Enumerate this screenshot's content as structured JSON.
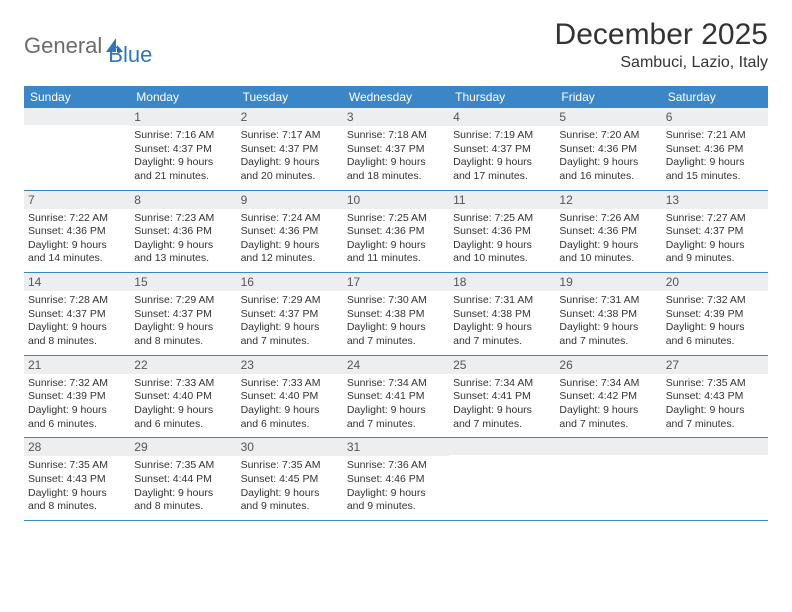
{
  "logo": {
    "text1": "General",
    "text2": "Blue"
  },
  "title": "December 2025",
  "location": "Sambuci, Lazio, Italy",
  "colors": {
    "header_bg": "#3b86c6",
    "header_fg": "#ffffff",
    "daynum_bg": "#eceef0",
    "rule": "#3b86c6",
    "logo_gray": "#6b6b6b",
    "logo_blue": "#2f77b8"
  },
  "weekdays": [
    "Sunday",
    "Monday",
    "Tuesday",
    "Wednesday",
    "Thursday",
    "Friday",
    "Saturday"
  ],
  "weeks": [
    [
      {
        "n": "",
        "sunrise": "",
        "sunset": "",
        "daylight": ""
      },
      {
        "n": "1",
        "sunrise": "Sunrise: 7:16 AM",
        "sunset": "Sunset: 4:37 PM",
        "daylight": "Daylight: 9 hours and 21 minutes."
      },
      {
        "n": "2",
        "sunrise": "Sunrise: 7:17 AM",
        "sunset": "Sunset: 4:37 PM",
        "daylight": "Daylight: 9 hours and 20 minutes."
      },
      {
        "n": "3",
        "sunrise": "Sunrise: 7:18 AM",
        "sunset": "Sunset: 4:37 PM",
        "daylight": "Daylight: 9 hours and 18 minutes."
      },
      {
        "n": "4",
        "sunrise": "Sunrise: 7:19 AM",
        "sunset": "Sunset: 4:37 PM",
        "daylight": "Daylight: 9 hours and 17 minutes."
      },
      {
        "n": "5",
        "sunrise": "Sunrise: 7:20 AM",
        "sunset": "Sunset: 4:36 PM",
        "daylight": "Daylight: 9 hours and 16 minutes."
      },
      {
        "n": "6",
        "sunrise": "Sunrise: 7:21 AM",
        "sunset": "Sunset: 4:36 PM",
        "daylight": "Daylight: 9 hours and 15 minutes."
      }
    ],
    [
      {
        "n": "7",
        "sunrise": "Sunrise: 7:22 AM",
        "sunset": "Sunset: 4:36 PM",
        "daylight": "Daylight: 9 hours and 14 minutes."
      },
      {
        "n": "8",
        "sunrise": "Sunrise: 7:23 AM",
        "sunset": "Sunset: 4:36 PM",
        "daylight": "Daylight: 9 hours and 13 minutes."
      },
      {
        "n": "9",
        "sunrise": "Sunrise: 7:24 AM",
        "sunset": "Sunset: 4:36 PM",
        "daylight": "Daylight: 9 hours and 12 minutes."
      },
      {
        "n": "10",
        "sunrise": "Sunrise: 7:25 AM",
        "sunset": "Sunset: 4:36 PM",
        "daylight": "Daylight: 9 hours and 11 minutes."
      },
      {
        "n": "11",
        "sunrise": "Sunrise: 7:25 AM",
        "sunset": "Sunset: 4:36 PM",
        "daylight": "Daylight: 9 hours and 10 minutes."
      },
      {
        "n": "12",
        "sunrise": "Sunrise: 7:26 AM",
        "sunset": "Sunset: 4:36 PM",
        "daylight": "Daylight: 9 hours and 10 minutes."
      },
      {
        "n": "13",
        "sunrise": "Sunrise: 7:27 AM",
        "sunset": "Sunset: 4:37 PM",
        "daylight": "Daylight: 9 hours and 9 minutes."
      }
    ],
    [
      {
        "n": "14",
        "sunrise": "Sunrise: 7:28 AM",
        "sunset": "Sunset: 4:37 PM",
        "daylight": "Daylight: 9 hours and 8 minutes."
      },
      {
        "n": "15",
        "sunrise": "Sunrise: 7:29 AM",
        "sunset": "Sunset: 4:37 PM",
        "daylight": "Daylight: 9 hours and 8 minutes."
      },
      {
        "n": "16",
        "sunrise": "Sunrise: 7:29 AM",
        "sunset": "Sunset: 4:37 PM",
        "daylight": "Daylight: 9 hours and 7 minutes."
      },
      {
        "n": "17",
        "sunrise": "Sunrise: 7:30 AM",
        "sunset": "Sunset: 4:38 PM",
        "daylight": "Daylight: 9 hours and 7 minutes."
      },
      {
        "n": "18",
        "sunrise": "Sunrise: 7:31 AM",
        "sunset": "Sunset: 4:38 PM",
        "daylight": "Daylight: 9 hours and 7 minutes."
      },
      {
        "n": "19",
        "sunrise": "Sunrise: 7:31 AM",
        "sunset": "Sunset: 4:38 PM",
        "daylight": "Daylight: 9 hours and 7 minutes."
      },
      {
        "n": "20",
        "sunrise": "Sunrise: 7:32 AM",
        "sunset": "Sunset: 4:39 PM",
        "daylight": "Daylight: 9 hours and 6 minutes."
      }
    ],
    [
      {
        "n": "21",
        "sunrise": "Sunrise: 7:32 AM",
        "sunset": "Sunset: 4:39 PM",
        "daylight": "Daylight: 9 hours and 6 minutes."
      },
      {
        "n": "22",
        "sunrise": "Sunrise: 7:33 AM",
        "sunset": "Sunset: 4:40 PM",
        "daylight": "Daylight: 9 hours and 6 minutes."
      },
      {
        "n": "23",
        "sunrise": "Sunrise: 7:33 AM",
        "sunset": "Sunset: 4:40 PM",
        "daylight": "Daylight: 9 hours and 6 minutes."
      },
      {
        "n": "24",
        "sunrise": "Sunrise: 7:34 AM",
        "sunset": "Sunset: 4:41 PM",
        "daylight": "Daylight: 9 hours and 7 minutes."
      },
      {
        "n": "25",
        "sunrise": "Sunrise: 7:34 AM",
        "sunset": "Sunset: 4:41 PM",
        "daylight": "Daylight: 9 hours and 7 minutes."
      },
      {
        "n": "26",
        "sunrise": "Sunrise: 7:34 AM",
        "sunset": "Sunset: 4:42 PM",
        "daylight": "Daylight: 9 hours and 7 minutes."
      },
      {
        "n": "27",
        "sunrise": "Sunrise: 7:35 AM",
        "sunset": "Sunset: 4:43 PM",
        "daylight": "Daylight: 9 hours and 7 minutes."
      }
    ],
    [
      {
        "n": "28",
        "sunrise": "Sunrise: 7:35 AM",
        "sunset": "Sunset: 4:43 PM",
        "daylight": "Daylight: 9 hours and 8 minutes."
      },
      {
        "n": "29",
        "sunrise": "Sunrise: 7:35 AM",
        "sunset": "Sunset: 4:44 PM",
        "daylight": "Daylight: 9 hours and 8 minutes."
      },
      {
        "n": "30",
        "sunrise": "Sunrise: 7:35 AM",
        "sunset": "Sunset: 4:45 PM",
        "daylight": "Daylight: 9 hours and 9 minutes."
      },
      {
        "n": "31",
        "sunrise": "Sunrise: 7:36 AM",
        "sunset": "Sunset: 4:46 PM",
        "daylight": "Daylight: 9 hours and 9 minutes."
      },
      {
        "n": "",
        "sunrise": "",
        "sunset": "",
        "daylight": ""
      },
      {
        "n": "",
        "sunrise": "",
        "sunset": "",
        "daylight": ""
      },
      {
        "n": "",
        "sunrise": "",
        "sunset": "",
        "daylight": ""
      }
    ]
  ]
}
